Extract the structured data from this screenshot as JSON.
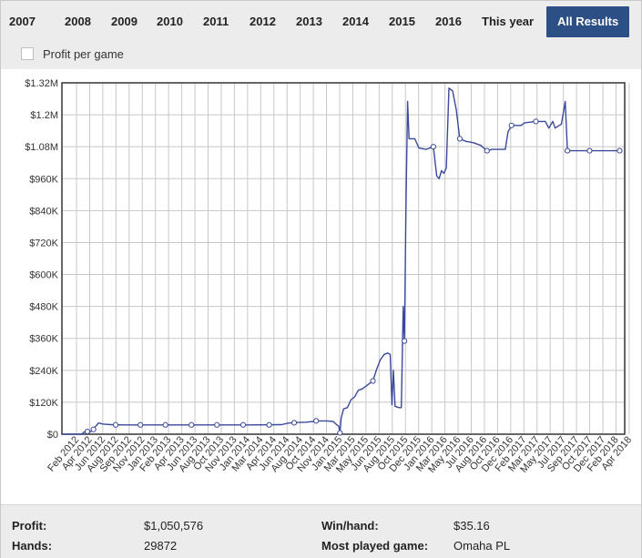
{
  "tabs": [
    {
      "label": "2007",
      "active": false
    },
    {
      "label": "2008",
      "active": false
    },
    {
      "label": "2009",
      "active": false
    },
    {
      "label": "2010",
      "active": false
    },
    {
      "label": "2011",
      "active": false
    },
    {
      "label": "2012",
      "active": false
    },
    {
      "label": "2013",
      "active": false
    },
    {
      "label": "2014",
      "active": false
    },
    {
      "label": "2015",
      "active": false
    },
    {
      "label": "2016",
      "active": false
    },
    {
      "label": "This year",
      "active": false
    },
    {
      "label": "All Results",
      "active": true
    }
  ],
  "profit_per_game": {
    "label": "Profit per game",
    "checked": false
  },
  "colors": {
    "accent": "#2c4f85",
    "line": "#3a4a9a",
    "grid": "#c8c8c8"
  },
  "chart_data": {
    "type": "line",
    "title": "",
    "xlabel": "",
    "ylabel": "",
    "ylim": [
      0,
      1320000
    ],
    "y_ticks": [
      0,
      120000,
      240000,
      360000,
      480000,
      600000,
      720000,
      840000,
      960000,
      1080000,
      1200000,
      1320000
    ],
    "y_tick_labels": [
      "$0",
      "$120K",
      "$240K",
      "$360K",
      "$480K",
      "$600K",
      "$720K",
      "$840K",
      "$960K",
      "$1.08M",
      "$1.2M",
      "$1.32M"
    ],
    "x_ticks": [
      "Feb 2012",
      "Apr 2012",
      "Jun 2012",
      "Aug 2012",
      "Sep 2012",
      "Nov 2012",
      "Jan 2013",
      "Feb 2013",
      "Apr 2013",
      "Jun 2013",
      "Aug 2013",
      "Oct 2013",
      "Nov 2013",
      "Jan 2014",
      "Mar 2014",
      "Apr 2014",
      "Jun 2014",
      "Aug 2014",
      "Oct 2014",
      "Nov 2014",
      "Jan 2015",
      "Mar 2015",
      "May 2015",
      "Jun 2015",
      "Aug 2015",
      "Oct 2015",
      "Dec 2015",
      "Jan 2016",
      "Mar 2016",
      "May 2016",
      "Jul 2016",
      "Aug 2016",
      "Oct 2016",
      "Dec 2016",
      "Feb 2017",
      "Mar 2017",
      "May 2017",
      "Jul 2017",
      "Sep 2017",
      "Oct 2017",
      "Dec 2017",
      "Feb 2018",
      "Apr 2018"
    ],
    "grid": true,
    "series": [
      {
        "points": [
          [
            "2012-01-10",
            0
          ],
          [
            "2012-04-01",
            0
          ],
          [
            "2012-04-10",
            8000
          ],
          [
            "2012-05-10",
            10000
          ],
          [
            "2012-05-25",
            25000
          ],
          [
            "2012-06-10",
            42000
          ],
          [
            "2012-07-01",
            38000
          ],
          [
            "2012-08-01",
            36000
          ],
          [
            "2012-09-15",
            35000
          ],
          [
            "2012-12-01",
            35000
          ],
          [
            "2013-03-01",
            35000
          ],
          [
            "2013-07-01",
            35000
          ],
          [
            "2013-11-01",
            35000
          ],
          [
            "2014-03-01",
            35000
          ],
          [
            "2014-07-10",
            36000
          ],
          [
            "2014-08-10",
            42000
          ],
          [
            "2014-09-20",
            44000
          ],
          [
            "2014-10-20",
            45000
          ],
          [
            "2014-11-20",
            48000
          ],
          [
            "2014-12-10",
            50000
          ],
          [
            "2015-01-15",
            50000
          ],
          [
            "2015-02-10",
            48000
          ],
          [
            "2015-02-25",
            35000
          ],
          [
            "2015-03-05",
            30000
          ],
          [
            "2015-03-10",
            5000
          ],
          [
            "2015-03-15",
            60000
          ],
          [
            "2015-03-25",
            95000
          ],
          [
            "2015-04-10",
            100000
          ],
          [
            "2015-04-25",
            130000
          ],
          [
            "2015-05-10",
            140000
          ],
          [
            "2015-05-25",
            165000
          ],
          [
            "2015-06-10",
            170000
          ],
          [
            "2015-06-25",
            180000
          ],
          [
            "2015-07-10",
            190000
          ],
          [
            "2015-07-25",
            200000
          ],
          [
            "2015-08-10",
            245000
          ],
          [
            "2015-08-25",
            280000
          ],
          [
            "2015-09-10",
            300000
          ],
          [
            "2015-09-25",
            305000
          ],
          [
            "2015-10-05",
            300000
          ],
          [
            "2015-10-12",
            110000
          ],
          [
            "2015-10-18",
            240000
          ],
          [
            "2015-10-25",
            105000
          ],
          [
            "2015-11-10",
            100000
          ],
          [
            "2015-11-20",
            100000
          ],
          [
            "2015-11-28",
            480000
          ],
          [
            "2015-12-03",
            350000
          ],
          [
            "2015-12-10",
            900000
          ],
          [
            "2015-12-16",
            1250000
          ],
          [
            "2015-12-22",
            1110000
          ],
          [
            "2016-01-15",
            1110000
          ],
          [
            "2016-02-01",
            1075000
          ],
          [
            "2016-03-01",
            1070000
          ],
          [
            "2016-04-01",
            1080000
          ],
          [
            "2016-04-15",
            970000
          ],
          [
            "2016-04-25",
            960000
          ],
          [
            "2016-05-05",
            990000
          ],
          [
            "2016-05-15",
            980000
          ],
          [
            "2016-05-25",
            1000000
          ],
          [
            "2016-06-05",
            1300000
          ],
          [
            "2016-06-20",
            1290000
          ],
          [
            "2016-07-05",
            1220000
          ],
          [
            "2016-07-20",
            1110000
          ],
          [
            "2016-08-15",
            1100000
          ],
          [
            "2016-09-15",
            1095000
          ],
          [
            "2016-10-15",
            1085000
          ],
          [
            "2016-11-10",
            1065000
          ],
          [
            "2016-12-01",
            1070000
          ],
          [
            "2017-01-05",
            1070000
          ],
          [
            "2017-01-25",
            1070000
          ],
          [
            "2017-02-05",
            1135000
          ],
          [
            "2017-02-20",
            1160000
          ],
          [
            "2017-04-01",
            1160000
          ],
          [
            "2017-04-15",
            1170000
          ],
          [
            "2017-06-01",
            1175000
          ],
          [
            "2017-07-10",
            1175000
          ],
          [
            "2017-07-25",
            1150000
          ],
          [
            "2017-08-10",
            1175000
          ],
          [
            "2017-08-20",
            1150000
          ],
          [
            "2017-09-15",
            1165000
          ],
          [
            "2017-10-01",
            1250000
          ],
          [
            "2017-10-10",
            1065000
          ],
          [
            "2017-12-15",
            1065000
          ],
          [
            "2018-03-01",
            1065000
          ],
          [
            "2018-05-15",
            1065000
          ]
        ],
        "markers": [
          [
            "2012-04-25",
            10000
          ],
          [
            "2012-05-20",
            18000
          ],
          [
            "2012-08-20",
            35000
          ],
          [
            "2012-12-01",
            35000
          ],
          [
            "2013-03-15",
            35000
          ],
          [
            "2013-07-01",
            35000
          ],
          [
            "2013-10-15",
            35000
          ],
          [
            "2014-02-01",
            35000
          ],
          [
            "2014-05-20",
            35000
          ],
          [
            "2014-09-01",
            43000
          ],
          [
            "2014-12-01",
            50000
          ],
          [
            "2015-03-10",
            5000
          ],
          [
            "2015-07-25",
            200000
          ],
          [
            "2015-12-03",
            350000
          ],
          [
            "2016-04-01",
            1080000
          ],
          [
            "2016-07-20",
            1110000
          ],
          [
            "2016-11-10",
            1065000
          ],
          [
            "2017-02-20",
            1160000
          ],
          [
            "2017-06-01",
            1175000
          ],
          [
            "2017-10-10",
            1065000
          ],
          [
            "2018-01-10",
            1065000
          ],
          [
            "2018-05-15",
            1065000
          ]
        ]
      }
    ]
  },
  "stats": {
    "profit_label": "Profit:",
    "profit_value": "$1,050,576",
    "hands_label": "Hands:",
    "hands_value": "29872",
    "winhand_label": "Win/hand:",
    "winhand_value": "$35.16",
    "most_label": "Most played game:",
    "most_value": "Omaha PL"
  }
}
